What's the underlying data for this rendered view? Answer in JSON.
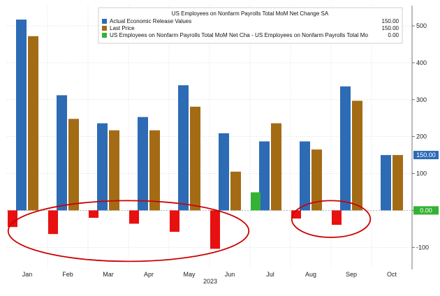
{
  "chart_data": {
    "type": "bar",
    "legend_title": "US Employees on Nonfarm Payrolls Total MoM Net Change SA",
    "legend_placement": "top-right",
    "xlabel": "2023",
    "categories": [
      "Jan",
      "Feb",
      "Mar",
      "Apr",
      "May",
      "Jun",
      "Jul",
      "Aug",
      "Sep",
      "Oct"
    ],
    "ylim": [
      -160,
      570
    ],
    "y_ticks": [
      -100,
      0,
      100,
      200,
      300,
      400,
      500
    ],
    "y_tick_labels": [
      "-100",
      "0",
      "100",
      "200",
      "300",
      "400",
      "500"
    ],
    "grid": true,
    "series": [
      {
        "name": "Actual Economic Release Values",
        "legend_value": "150.00",
        "color": "#2d6bb5",
        "values": [
          517,
          312,
          236,
          253,
          339,
          209,
          187,
          187,
          336,
          150
        ]
      },
      {
        "name": "Last Price",
        "legend_value": "150.00",
        "color": "#a46b15",
        "values": [
          472,
          248,
          217,
          217,
          281,
          105,
          236,
          165,
          297,
          150
        ]
      },
      {
        "name": "US Employees on Nonfarm Payrolls Total MoM Net Cha - US Employees on Nonfarm Payrolls Total Mo",
        "legend_value": "0.00",
        "color_negative": "#e81010",
        "color_positive": "#34b234",
        "values": [
          -45,
          -64,
          -20,
          -36,
          -58,
          -104,
          49,
          -22,
          -39,
          0
        ]
      }
    ],
    "right_axis_labels": [
      {
        "text": "150.00",
        "value": 150,
        "bg": "#2d6bb5"
      },
      {
        "text": "0.00",
        "value": 0,
        "bg": "#34b234"
      }
    ],
    "annotations": [
      {
        "type": "ellipse",
        "color": "#cc0000",
        "categories": [
          "Jan",
          "Jun"
        ]
      },
      {
        "type": "ellipse",
        "color": "#cc0000",
        "categories": [
          "Aug",
          "Sep"
        ]
      }
    ]
  }
}
